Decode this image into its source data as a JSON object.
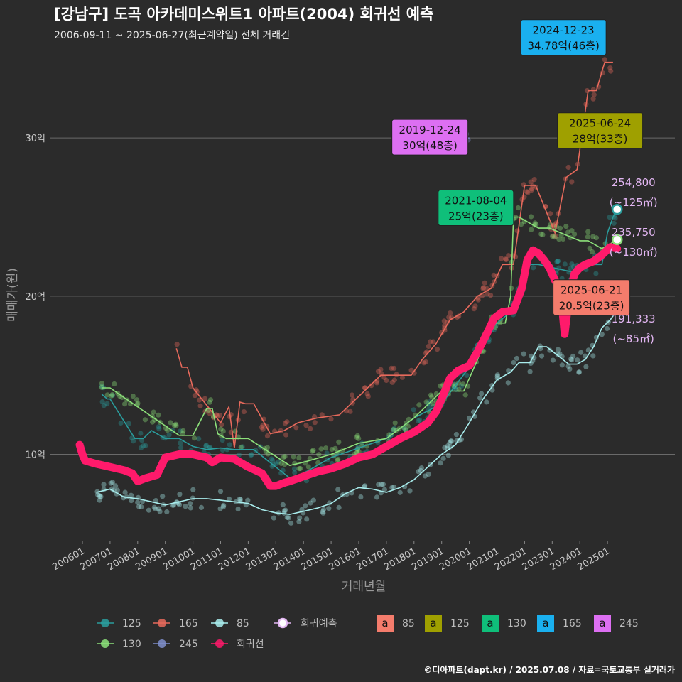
{
  "title": "[강남구] 도곡 아카데미스위트1 아파트(2004) 회귀선 예측",
  "subtitle": "2006-09-11 ~ 2025-06-27(최근계약일) 전체 거래건",
  "caption": "©디아파트(dapt.kr) / 2025.07.08 / 자료=국토교통부 실거래가",
  "chart_data": {
    "type": "line",
    "xlabel": "거래년월",
    "ylabel": "매매가(원)",
    "x_ticks": [
      "200601",
      "200701",
      "200801",
      "200901",
      "201001",
      "201101",
      "201201",
      "201301",
      "201401",
      "201501",
      "201601",
      "201701",
      "201801",
      "201901",
      "202001",
      "202101",
      "202201",
      "202301",
      "202401",
      "202501"
    ],
    "y_ticks": [
      {
        "value": 10,
        "label": "10억"
      },
      {
        "value": 20,
        "label": "20억"
      },
      {
        "value": 30,
        "label": "30억"
      }
    ],
    "ylim": [
      4.5,
      35.8
    ],
    "xlim": [
      2005.5,
      2026.2
    ],
    "grid": true,
    "legend_position": "bottom",
    "series": [
      {
        "name": "125",
        "color": "#2a9d9d",
        "points": [
          [
            2006.7,
            13.8
          ],
          [
            2006.9,
            13.5
          ],
          [
            2007.0,
            13.5
          ],
          [
            2007.9,
            11.0
          ],
          [
            2008.2,
            11.0
          ],
          [
            2008.5,
            11.5
          ],
          [
            2009.0,
            11.0
          ],
          [
            2009.5,
            11.0
          ],
          [
            2010.0,
            10.5
          ],
          [
            2010.5,
            10.3
          ],
          [
            2011.0,
            10.4
          ],
          [
            2011.5,
            10.3
          ],
          [
            2012.2,
            10.3
          ],
          [
            2013.5,
            8.5
          ],
          [
            2014.0,
            8.8
          ],
          [
            2015.0,
            9.8
          ],
          [
            2016.0,
            10.4
          ],
          [
            2017.0,
            11.0
          ],
          [
            2018.0,
            12.3
          ],
          [
            2019.0,
            13.2
          ],
          [
            2020.0,
            15.5
          ],
          [
            2020.8,
            18.0
          ],
          [
            2021.5,
            19.0
          ],
          [
            2021.8,
            20.0
          ],
          [
            2022.2,
            22.0
          ],
          [
            2022.5,
            22.0
          ],
          [
            2023.8,
            21.5
          ],
          [
            2024.5,
            22.0
          ],
          [
            2024.8,
            22.0
          ],
          [
            2025.0,
            24.0
          ],
          [
            2025.2,
            25.0
          ],
          [
            2025.35,
            25.5
          ]
        ]
      },
      {
        "name": "165",
        "color": "#e86a5c",
        "points": [
          [
            2009.4,
            16.7
          ],
          [
            2009.6,
            15.5
          ],
          [
            2009.8,
            15.5
          ],
          [
            2010.0,
            14.2
          ],
          [
            2011.0,
            12.0
          ],
          [
            2011.3,
            13.0
          ],
          [
            2011.5,
            10.4
          ],
          [
            2011.7,
            13.3
          ],
          [
            2011.9,
            13.2
          ],
          [
            2012.2,
            13.2
          ],
          [
            2012.8,
            11.3
          ],
          [
            2013.3,
            11.5
          ],
          [
            2013.8,
            12.0
          ],
          [
            2014.5,
            12.3
          ],
          [
            2015.3,
            12.5
          ],
          [
            2016.8,
            15.0
          ],
          [
            2017.3,
            15.0
          ],
          [
            2017.9,
            15.0
          ],
          [
            2018.3,
            16.0
          ],
          [
            2018.8,
            17.0
          ],
          [
            2019.3,
            18.5
          ],
          [
            2019.8,
            19.0
          ],
          [
            2020.3,
            20.0
          ],
          [
            2020.8,
            20.5
          ],
          [
            2021.2,
            22.0
          ],
          [
            2021.6,
            22.0
          ],
          [
            2022.0,
            27.0
          ],
          [
            2022.4,
            27.0
          ],
          [
            2023.1,
            24.0
          ],
          [
            2023.5,
            27.5
          ],
          [
            2023.9,
            28.0
          ],
          [
            2024.3,
            33.0
          ],
          [
            2024.6,
            33.0
          ],
          [
            2024.9,
            34.78
          ],
          [
            2025.2,
            34.78
          ]
        ]
      },
      {
        "name": "85",
        "color": "#a8ecec",
        "points": [
          [
            2006.5,
            7.6
          ],
          [
            2007.0,
            7.8
          ],
          [
            2007.5,
            7.3
          ],
          [
            2008.0,
            7.2
          ],
          [
            2008.5,
            7.0
          ],
          [
            2009.0,
            6.8
          ],
          [
            2009.5,
            7.0
          ],
          [
            2010.0,
            7.2
          ],
          [
            2010.5,
            7.2
          ],
          [
            2011.0,
            7.1
          ],
          [
            2011.5,
            7.0
          ],
          [
            2012.0,
            6.9
          ],
          [
            2012.5,
            6.5
          ],
          [
            2013.0,
            6.3
          ],
          [
            2013.5,
            6.2
          ],
          [
            2014.0,
            6.4
          ],
          [
            2014.5,
            6.6
          ],
          [
            2015.0,
            6.9
          ],
          [
            2015.5,
            7.5
          ],
          [
            2016.0,
            7.9
          ],
          [
            2016.5,
            7.8
          ],
          [
            2017.0,
            7.6
          ],
          [
            2017.5,
            7.9
          ],
          [
            2018.0,
            8.4
          ],
          [
            2018.5,
            9.2
          ],
          [
            2019.0,
            10.0
          ],
          [
            2019.5,
            10.6
          ],
          [
            2020.0,
            12.0
          ],
          [
            2020.5,
            13.5
          ],
          [
            2021.0,
            14.7
          ],
          [
            2021.5,
            15.2
          ],
          [
            2021.8,
            15.8
          ],
          [
            2022.2,
            15.8
          ],
          [
            2022.5,
            16.8
          ],
          [
            2022.8,
            16.8
          ],
          [
            2023.6,
            15.7
          ],
          [
            2023.9,
            15.7
          ],
          [
            2024.2,
            16.0
          ],
          [
            2024.5,
            16.8
          ],
          [
            2024.8,
            18.0
          ],
          [
            2025.1,
            18.5
          ],
          [
            2025.35,
            19.1
          ]
        ]
      },
      {
        "name": "130",
        "color": "#8ce07a",
        "points": [
          [
            2006.7,
            14.2
          ],
          [
            2007.0,
            14.2
          ],
          [
            2009.5,
            11.2
          ],
          [
            2010.0,
            11.2
          ],
          [
            2010.5,
            12.9
          ],
          [
            2010.7,
            12.9
          ],
          [
            2010.9,
            11.3
          ],
          [
            2011.2,
            11.0
          ],
          [
            2012.0,
            11.0
          ],
          [
            2013.5,
            9.3
          ],
          [
            2014.0,
            9.5
          ],
          [
            2015.0,
            10.0
          ],
          [
            2016.0,
            10.7
          ],
          [
            2017.0,
            11.0
          ],
          [
            2018.0,
            12.3
          ],
          [
            2019.0,
            14.0
          ],
          [
            2019.8,
            14.0
          ],
          [
            2020.3,
            16.0
          ],
          [
            2020.8,
            18.3
          ],
          [
            2021.3,
            18.3
          ],
          [
            2021.5,
            20.0
          ],
          [
            2021.6,
            25.0
          ],
          [
            2021.8,
            25.0
          ],
          [
            2022.5,
            24.3
          ],
          [
            2022.9,
            24.3
          ],
          [
            2024.0,
            23.5
          ],
          [
            2024.3,
            23.5
          ],
          [
            2024.8,
            23.0
          ],
          [
            2025.1,
            23.3
          ],
          [
            2025.35,
            23.6
          ]
        ]
      },
      {
        "name": "245",
        "color": "#7f8fcc",
        "points": [
          [
            2019.5,
            30.0
          ],
          [
            2019.8,
            30.0
          ],
          [
            2020.0,
            30.0
          ]
        ]
      }
    ],
    "regression_line": {
      "name": "회귀선",
      "color": "#ff1a6b",
      "points": [
        [
          2005.9,
          10.6
        ],
        [
          2006.0,
          10.0
        ],
        [
          2006.1,
          9.6
        ],
        [
          2006.5,
          9.4
        ],
        [
          2007.0,
          9.2
        ],
        [
          2007.5,
          9.0
        ],
        [
          2007.8,
          8.8
        ],
        [
          2008.0,
          8.3
        ],
        [
          2008.3,
          8.5
        ],
        [
          2008.7,
          8.7
        ],
        [
          2009.0,
          9.8
        ],
        [
          2009.5,
          10.0
        ],
        [
          2010.0,
          10.0
        ],
        [
          2010.5,
          9.8
        ],
        [
          2010.7,
          9.5
        ],
        [
          2011.0,
          9.8
        ],
        [
          2011.5,
          9.7
        ],
        [
          2012.0,
          9.2
        ],
        [
          2012.5,
          8.8
        ],
        [
          2012.8,
          8.0
        ],
        [
          2013.0,
          8.0
        ],
        [
          2013.3,
          8.2
        ],
        [
          2013.5,
          8.3
        ],
        [
          2014.0,
          8.6
        ],
        [
          2014.5,
          8.9
        ],
        [
          2015.0,
          9.1
        ],
        [
          2015.5,
          9.4
        ],
        [
          2016.0,
          9.8
        ],
        [
          2016.5,
          10.0
        ],
        [
          2017.0,
          10.5
        ],
        [
          2017.5,
          11.0
        ],
        [
          2018.0,
          11.4
        ],
        [
          2018.5,
          12.0
        ],
        [
          2018.8,
          12.7
        ],
        [
          2019.0,
          13.5
        ],
        [
          2019.3,
          14.8
        ],
        [
          2019.6,
          15.3
        ],
        [
          2020.0,
          15.6
        ],
        [
          2020.3,
          16.5
        ],
        [
          2020.6,
          17.5
        ],
        [
          2020.9,
          18.6
        ],
        [
          2021.2,
          19.0
        ],
        [
          2021.6,
          19.1
        ],
        [
          2021.9,
          20.5
        ],
        [
          2022.1,
          22.3
        ],
        [
          2022.3,
          22.9
        ],
        [
          2022.5,
          22.7
        ],
        [
          2022.7,
          22.3
        ],
        [
          2022.9,
          21.8
        ],
        [
          2023.1,
          21.0
        ],
        [
          2023.3,
          20.4
        ],
        [
          2023.45,
          17.6
        ],
        [
          2023.6,
          19.8
        ],
        [
          2023.8,
          21.4
        ],
        [
          2024.0,
          21.8
        ],
        [
          2024.2,
          22.0
        ],
        [
          2024.5,
          22.2
        ],
        [
          2024.8,
          22.6
        ],
        [
          2025.1,
          23.1
        ],
        [
          2025.35,
          23.0
        ]
      ]
    },
    "forecast_points": [
      {
        "size": "125",
        "value": "254,800",
        "area": "(~125㎡)",
        "x": 2025.35,
        "y": 25.48,
        "color": "#2a9d9d"
      },
      {
        "size": "130",
        "value": "235,750",
        "area": "(~130㎡)",
        "x": 2025.35,
        "y": 23.575,
        "color": "#8ce07a"
      },
      {
        "size": "85",
        "value": "191,333",
        "area": "(~85㎡)",
        "x": 2025.35,
        "y": 19.13,
        "color": "#a8ecec"
      }
    ],
    "callouts": [
      {
        "date": "2024-12-23",
        "price": "34.78억(46층)",
        "color": "#1ab0ef",
        "x": 2024.95,
        "y": 34.78
      },
      {
        "date": "2019-12-24",
        "price": "30억(48층)",
        "color": "#dd6ff2",
        "x": 2019.95,
        "y": 30.0
      },
      {
        "date": "2025-06-24",
        "price": "28억(33층)",
        "color": "#9fa000",
        "x": 2025.45,
        "y": 28.0
      },
      {
        "date": "2021-08-04",
        "price": "25억(23층)",
        "color": "#0fbf7a",
        "x": 2021.6,
        "y": 25.0
      },
      {
        "date": "2025-06-21",
        "price": "20.5억(23층)",
        "color": "#f47c6c",
        "x": 2025.45,
        "y": 20.5
      }
    ],
    "scatter_seed": 7
  },
  "legend": {
    "line_items": [
      {
        "label": "125",
        "color": "#2a9d9d"
      },
      {
        "label": "165",
        "color": "#e86a5c"
      },
      {
        "label": "85",
        "color": "#a8ecec"
      },
      {
        "label": "130",
        "color": "#8ce07a"
      },
      {
        "label": "245",
        "color": "#7f8fcc"
      },
      {
        "label": "회귀선",
        "color": "#ff1a6b"
      }
    ],
    "forecast_item": {
      "label": "회귀예측",
      "color": "#e2b6f2"
    },
    "label_items": [
      {
        "label": "85",
        "color": "#f47c6c"
      },
      {
        "label": "125",
        "color": "#9fa000"
      },
      {
        "label": "130",
        "color": "#0fbf7a"
      },
      {
        "label": "165",
        "color": "#1ab0ef"
      },
      {
        "label": "245",
        "color": "#dd6ff2"
      }
    ],
    "key_glyph": "a"
  }
}
